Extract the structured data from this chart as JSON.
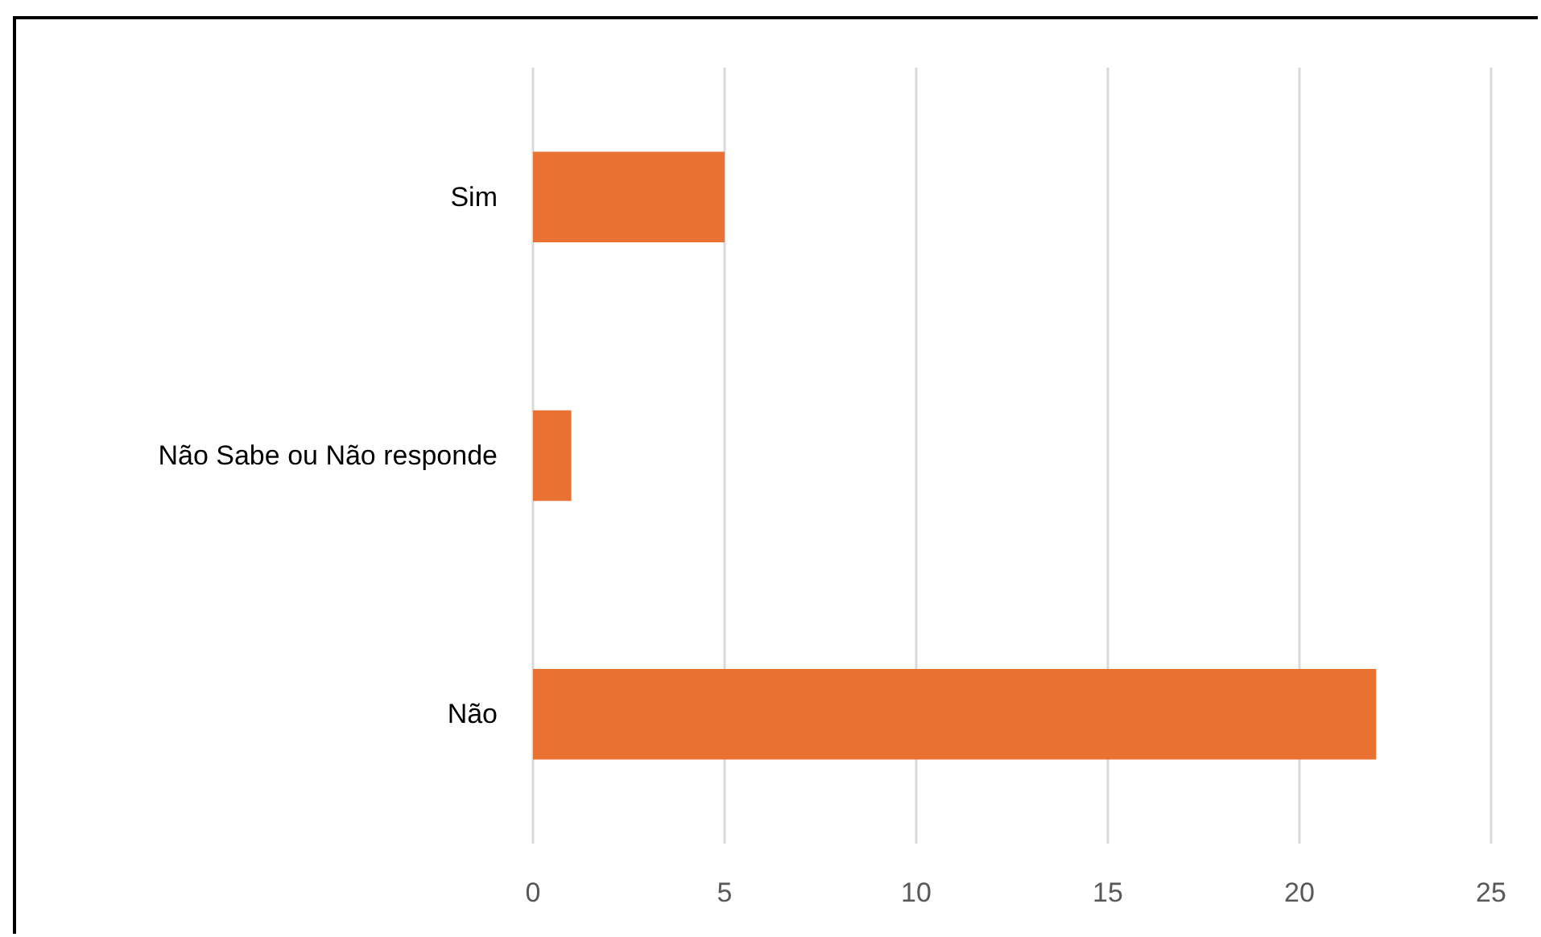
{
  "chart_data": {
    "type": "bar",
    "orientation": "horizontal",
    "categories": [
      "Sim",
      "Não Sabe ou Não responde",
      "Não"
    ],
    "values": [
      5,
      1,
      22
    ],
    "color": "#e97132",
    "xlim": [
      0,
      25
    ],
    "xticks": [
      0,
      5,
      10,
      15,
      20,
      25
    ],
    "grid": "x"
  }
}
